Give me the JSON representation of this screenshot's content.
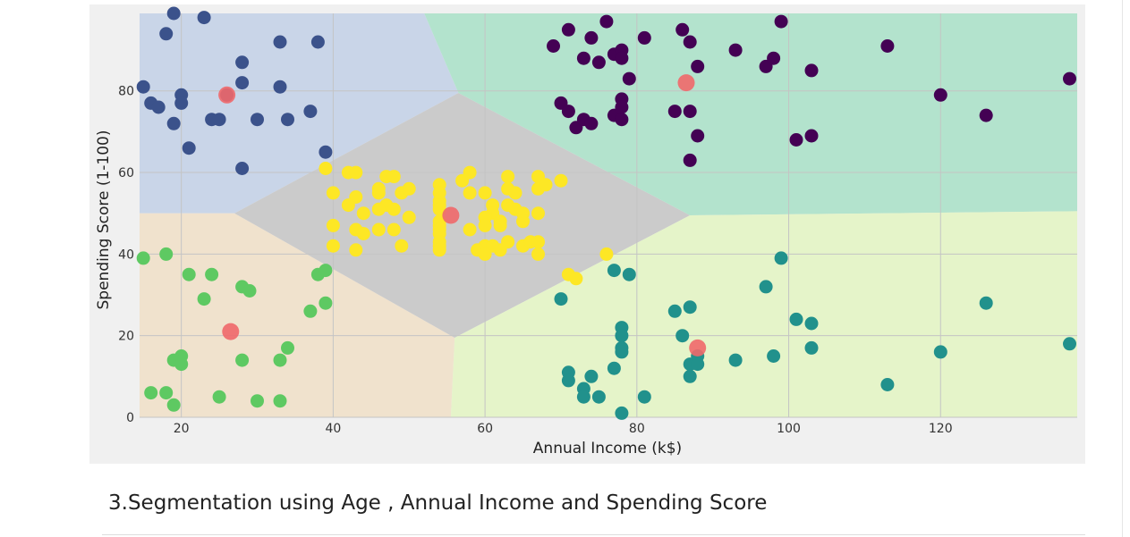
{
  "heading": "3.Segmentation using Age , Annual Income and Spending Score",
  "chart_data": {
    "type": "scatter",
    "title": "",
    "xlabel": "Annual Income (k$)",
    "ylabel": "Spending Score (1-100)",
    "xlim": [
      14.5,
      138
    ],
    "ylim": [
      0,
      99
    ],
    "xticks": [
      20,
      40,
      60,
      80,
      100,
      120
    ],
    "yticks": [
      0,
      20,
      40,
      60,
      80
    ],
    "grid": true,
    "legend": "none",
    "region_colors": [
      "#c9d5e8",
      "#f0e2cd",
      "#cbcbcb",
      "#b3e3cd",
      "#e5f4c9"
    ],
    "point_colors": [
      "#3b528b",
      "#5ec962",
      "#fde725",
      "#440154",
      "#21918c"
    ],
    "centroid_color": "#f0686a",
    "regions": [
      {
        "color": 0,
        "polygon": [
          [
            14.5,
            99
          ],
          [
            52,
            99
          ],
          [
            56.5,
            79.5
          ],
          [
            27,
            50
          ],
          [
            14.5,
            50
          ]
        ]
      },
      {
        "color": 1,
        "polygon": [
          [
            14.5,
            50
          ],
          [
            27,
            50
          ],
          [
            56,
            19.5
          ],
          [
            55.5,
            0
          ],
          [
            14.5,
            0
          ]
        ]
      },
      {
        "color": 2,
        "polygon": [
          [
            27,
            50
          ],
          [
            56.5,
            79.5
          ],
          [
            87,
            49.5
          ],
          [
            56,
            19.5
          ]
        ]
      },
      {
        "color": 3,
        "polygon": [
          [
            52,
            99
          ],
          [
            138,
            99
          ],
          [
            138,
            50.5
          ],
          [
            87,
            49.5
          ],
          [
            56.5,
            79.5
          ]
        ]
      },
      {
        "color": 4,
        "polygon": [
          [
            56,
            19.5
          ],
          [
            87,
            49.5
          ],
          [
            138,
            50.5
          ],
          [
            138,
            0
          ],
          [
            55.5,
            0
          ]
        ]
      }
    ],
    "series": [
      {
        "color": 0,
        "points": [
          [
            19,
            99
          ],
          [
            23,
            98
          ],
          [
            18,
            94
          ],
          [
            33,
            92
          ],
          [
            38,
            92
          ],
          [
            28,
            87
          ],
          [
            15,
            81
          ],
          [
            20,
            79
          ],
          [
            26,
            79
          ],
          [
            28,
            82
          ],
          [
            33,
            81
          ],
          [
            16,
            77
          ],
          [
            17,
            76
          ],
          [
            20,
            77
          ],
          [
            37,
            75
          ],
          [
            24,
            73
          ],
          [
            25,
            73
          ],
          [
            30,
            73
          ],
          [
            34,
            73
          ],
          [
            19,
            72
          ],
          [
            21,
            66
          ],
          [
            39,
            65
          ],
          [
            28,
            61
          ]
        ]
      },
      {
        "color": 1,
        "points": [
          [
            15,
            39
          ],
          [
            18,
            40
          ],
          [
            21,
            35
          ],
          [
            24,
            35
          ],
          [
            28,
            32
          ],
          [
            29,
            31
          ],
          [
            23,
            29
          ],
          [
            38,
            35
          ],
          [
            39,
            36
          ],
          [
            39,
            28
          ],
          [
            37,
            26
          ],
          [
            34,
            17
          ],
          [
            20,
            15
          ],
          [
            19,
            14
          ],
          [
            20,
            13
          ],
          [
            28,
            14
          ],
          [
            33,
            14
          ],
          [
            16,
            6
          ],
          [
            18,
            6
          ],
          [
            25,
            5
          ],
          [
            30,
            4
          ],
          [
            33,
            4
          ],
          [
            19,
            3
          ]
        ]
      },
      {
        "color": 2,
        "points": [
          [
            39,
            61
          ],
          [
            42,
            60
          ],
          [
            43,
            60
          ],
          [
            47,
            59
          ],
          [
            48,
            59
          ],
          [
            40,
            55
          ],
          [
            43,
            54
          ],
          [
            46,
            55
          ],
          [
            46,
            56
          ],
          [
            49,
            55
          ],
          [
            50,
            56
          ],
          [
            42,
            52
          ],
          [
            47,
            52
          ],
          [
            48,
            51
          ],
          [
            46,
            51
          ],
          [
            44,
            50
          ],
          [
            50,
            49
          ],
          [
            54,
            57
          ],
          [
            54,
            55
          ],
          [
            54,
            53
          ],
          [
            54,
            52
          ],
          [
            54,
            51
          ],
          [
            54,
            48
          ],
          [
            54,
            47
          ],
          [
            54,
            46
          ],
          [
            54,
            45
          ],
          [
            54,
            43
          ],
          [
            54,
            42
          ],
          [
            54,
            41
          ],
          [
            57,
            58
          ],
          [
            58,
            60
          ],
          [
            58,
            55
          ],
          [
            60,
            55
          ],
          [
            61,
            52
          ],
          [
            61,
            50
          ],
          [
            60,
            49
          ],
          [
            62,
            48
          ],
          [
            63,
            59
          ],
          [
            63,
            56
          ],
          [
            64,
            55
          ],
          [
            63,
            52
          ],
          [
            64,
            51
          ],
          [
            65,
            50
          ],
          [
            62,
            47
          ],
          [
            60,
            47
          ],
          [
            58,
            46
          ],
          [
            60,
            42
          ],
          [
            61,
            42
          ],
          [
            63,
            43
          ],
          [
            65,
            42
          ],
          [
            65,
            48
          ],
          [
            67,
            59
          ],
          [
            67,
            56
          ],
          [
            68,
            57
          ],
          [
            70,
            58
          ],
          [
            67,
            50
          ],
          [
            66,
            43
          ],
          [
            67,
            43
          ],
          [
            67,
            40
          ],
          [
            71,
            35
          ],
          [
            72,
            34
          ],
          [
            62,
            41
          ],
          [
            59,
            41
          ],
          [
            60,
            40
          ],
          [
            48,
            46
          ],
          [
            46,
            46
          ],
          [
            43,
            46
          ],
          [
            44,
            45
          ],
          [
            40,
            47
          ],
          [
            40,
            42
          ],
          [
            43,
            41
          ],
          [
            49,
            42
          ],
          [
            76,
            40
          ]
        ]
      },
      {
        "color": 3,
        "points": [
          [
            69,
            91
          ],
          [
            71,
            95
          ],
          [
            73,
            88
          ],
          [
            74,
            93
          ],
          [
            75,
            87
          ],
          [
            76,
            97
          ],
          [
            77,
            74
          ],
          [
            77,
            89
          ],
          [
            78,
            90
          ],
          [
            78,
            88
          ],
          [
            78,
            78
          ],
          [
            78,
            76
          ],
          [
            78,
            73
          ],
          [
            79,
            83
          ],
          [
            81,
            93
          ],
          [
            70,
            77
          ],
          [
            71,
            75
          ],
          [
            72,
            71
          ],
          [
            73,
            73
          ],
          [
            74,
            72
          ],
          [
            85,
            75
          ],
          [
            86,
            95
          ],
          [
            87,
            92
          ],
          [
            87,
            75
          ],
          [
            87,
            63
          ],
          [
            88,
            86
          ],
          [
            88,
            69
          ],
          [
            93,
            90
          ],
          [
            97,
            86
          ],
          [
            98,
            88
          ],
          [
            99,
            97
          ],
          [
            101,
            68
          ],
          [
            103,
            85
          ],
          [
            103,
            69
          ],
          [
            113,
            91
          ],
          [
            120,
            79
          ],
          [
            126,
            74
          ],
          [
            137,
            83
          ]
        ]
      },
      {
        "color": 4,
        "points": [
          [
            70,
            29
          ],
          [
            71,
            11
          ],
          [
            71,
            9
          ],
          [
            73,
            7
          ],
          [
            73,
            5
          ],
          [
            74,
            10
          ],
          [
            75,
            5
          ],
          [
            77,
            12
          ],
          [
            77,
            36
          ],
          [
            78,
            22
          ],
          [
            78,
            20
          ],
          [
            78,
            17
          ],
          [
            78,
            16
          ],
          [
            78,
            1
          ],
          [
            79,
            35
          ],
          [
            81,
            5
          ],
          [
            85,
            26
          ],
          [
            86,
            20
          ],
          [
            87,
            27
          ],
          [
            87,
            13
          ],
          [
            87,
            10
          ],
          [
            88,
            15
          ],
          [
            88,
            13
          ],
          [
            93,
            14
          ],
          [
            97,
            32
          ],
          [
            98,
            15
          ],
          [
            99,
            39
          ],
          [
            101,
            24
          ],
          [
            103,
            23
          ],
          [
            103,
            17
          ],
          [
            113,
            8
          ],
          [
            120,
            16
          ],
          [
            126,
            28
          ],
          [
            137,
            18
          ]
        ]
      }
    ],
    "centroids": [
      [
        26,
        79
      ],
      [
        26.5,
        21
      ],
      [
        55.5,
        49.5
      ],
      [
        86.5,
        82
      ],
      [
        88,
        17
      ]
    ]
  }
}
